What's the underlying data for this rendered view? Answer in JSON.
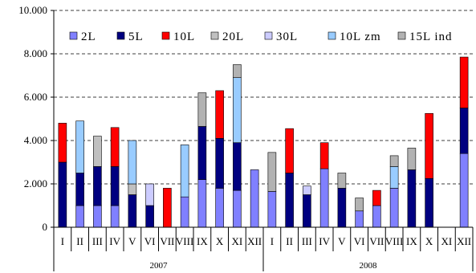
{
  "chart_data": {
    "type": "bar",
    "stacked": true,
    "categories": [
      "I",
      "II",
      "III",
      "IV",
      "V",
      "VI",
      "VII",
      "VIII",
      "IX",
      "X",
      "XI",
      "XII",
      "I",
      "II",
      "III",
      "IV",
      "V",
      "VI",
      "VII",
      "VIII",
      "IX",
      "X",
      "XI",
      "XII"
    ],
    "groups": [
      {
        "label": "2007",
        "count": 12
      },
      {
        "label": "2008",
        "count": 12
      }
    ],
    "yticks": [
      "0",
      "2.000",
      "4.000",
      "6.000",
      "8.000",
      "10.000"
    ],
    "ylim": [
      0,
      10000
    ],
    "grid": "dashed-horizontal",
    "legend_position": "top",
    "series": [
      {
        "name": "2L",
        "color": "#8080ff",
        "values": [
          0,
          1000,
          1000,
          1000,
          0,
          0,
          0,
          1400,
          2200,
          1800,
          1700,
          2650,
          1650,
          0,
          0,
          2700,
          0,
          750,
          1000,
          1800,
          0,
          0,
          0,
          3400
        ]
      },
      {
        "name": "5L",
        "color": "#000080",
        "values": [
          3000,
          1500,
          1800,
          1800,
          1500,
          1000,
          0,
          0,
          2450,
          2300,
          2200,
          0,
          0,
          2500,
          1500,
          0,
          1800,
          0,
          0,
          0,
          2650,
          2250,
          0,
          2100
        ]
      },
      {
        "name": "10L",
        "color": "#ff0000",
        "values": [
          1800,
          0,
          0,
          1800,
          0,
          0,
          1800,
          0,
          0,
          2200,
          0,
          0,
          0,
          2050,
          0,
          1200,
          0,
          0,
          700,
          0,
          0,
          3000,
          0,
          2350
        ]
      },
      {
        "name": "20L",
        "color": "#c0c0c0",
        "values": [
          0,
          0,
          1400,
          0,
          500,
          0,
          0,
          0,
          0,
          0,
          0,
          0,
          0,
          0,
          0,
          0,
          0,
          0,
          0,
          0,
          0,
          0,
          0,
          0
        ]
      },
      {
        "name": "30L",
        "color": "#ccccff",
        "values": [
          0,
          0,
          0,
          0,
          0,
          1000,
          0,
          0,
          0,
          0,
          0,
          0,
          0,
          0,
          400,
          0,
          0,
          0,
          0,
          0,
          0,
          0,
          0,
          0
        ]
      },
      {
        "name": "10L zm",
        "color": "#99ccff",
        "values": [
          0,
          2400,
          0,
          0,
          2000,
          0,
          0,
          2400,
          0,
          0,
          3000,
          0,
          0,
          0,
          0,
          0,
          0,
          0,
          0,
          1000,
          0,
          0,
          0,
          0
        ]
      },
      {
        "name": "15L ind",
        "color": "#b2b2b2",
        "values": [
          0,
          0,
          0,
          0,
          0,
          0,
          0,
          0,
          1550,
          0,
          600,
          0,
          1800,
          0,
          0,
          0,
          700,
          600,
          0,
          500,
          1000,
          0,
          0,
          0
        ]
      }
    ]
  }
}
